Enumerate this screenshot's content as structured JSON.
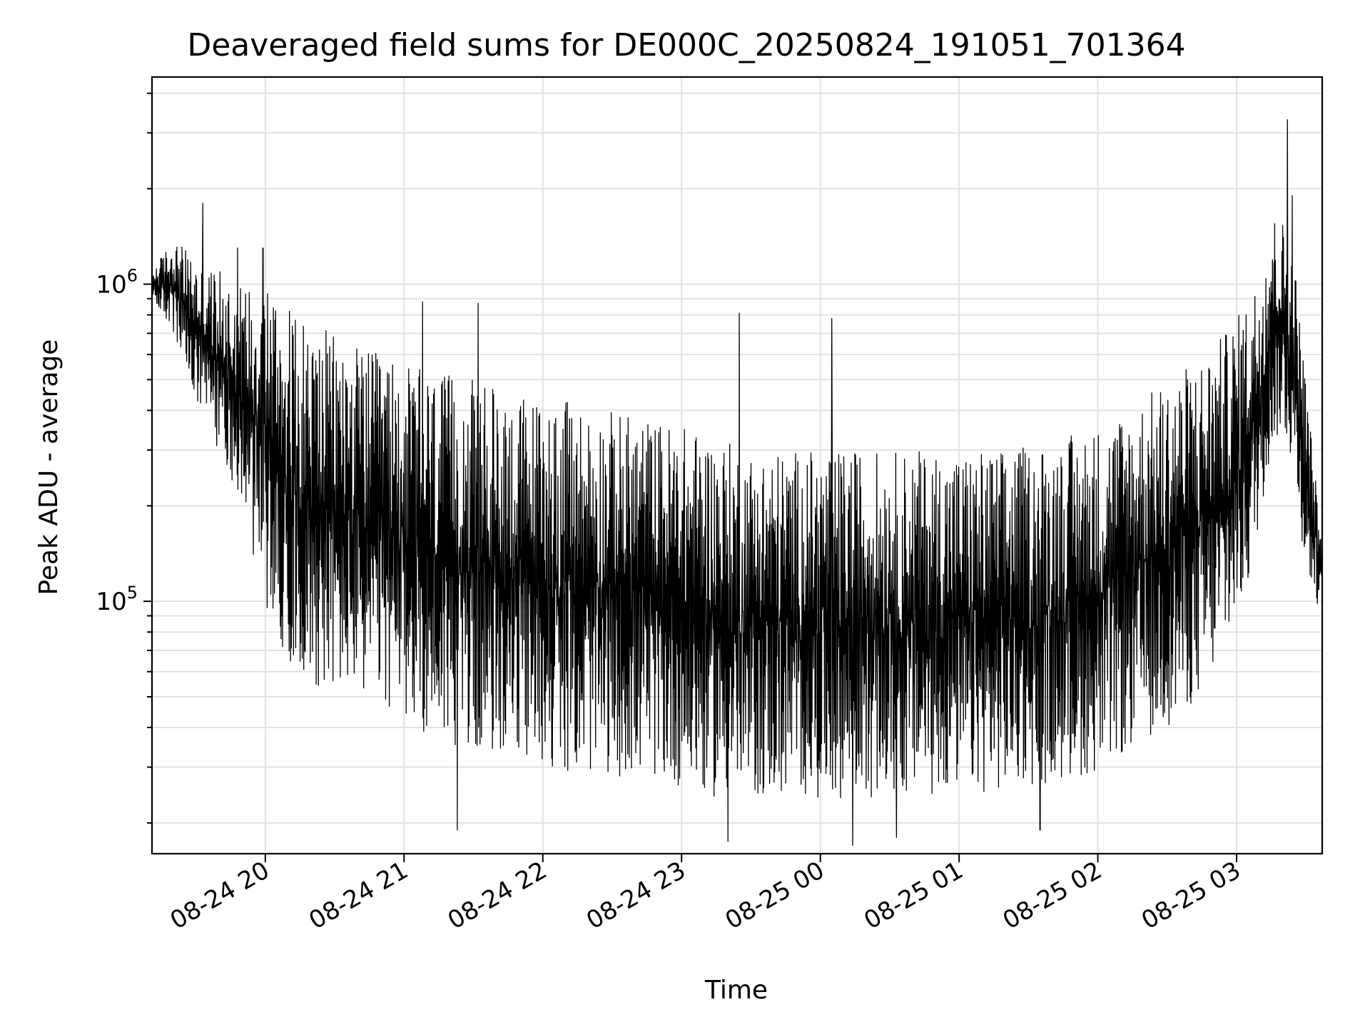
{
  "chart_data": {
    "type": "line",
    "title": "Deaveraged field sums for DE000C_20250824_191051_701364",
    "xlabel": "Time",
    "ylabel": "Peak ADU - average",
    "yscale": "log",
    "grid": true,
    "xlim": [
      "2025-08-24 19:11",
      "2025-08-25 03:37"
    ],
    "ylim": [
      16000,
      4500000
    ],
    "xticks": [
      {
        "label": "08-24 20",
        "t": "2025-08-24 20:00"
      },
      {
        "label": "08-24 21",
        "t": "2025-08-24 21:00"
      },
      {
        "label": "08-24 22",
        "t": "2025-08-24 22:00"
      },
      {
        "label": "08-24 23",
        "t": "2025-08-24 23:00"
      },
      {
        "label": "08-25 00",
        "t": "2025-08-25 00:00"
      },
      {
        "label": "08-25 01",
        "t": "2025-08-25 01:00"
      },
      {
        "label": "08-25 02",
        "t": "2025-08-25 02:00"
      },
      {
        "label": "08-25 03",
        "t": "2025-08-25 03:00"
      }
    ],
    "yticks": [
      {
        "value": 100000,
        "base": "10",
        "exp": "5"
      },
      {
        "value": 1000000,
        "base": "10",
        "exp": "6"
      }
    ],
    "series": [
      {
        "color": "#000000",
        "envelope": {
          "t": [
            "2025-08-24 19:11",
            "2025-08-24 19:20",
            "2025-08-24 19:30",
            "2025-08-24 19:40",
            "2025-08-24 19:50",
            "2025-08-24 20:00",
            "2025-08-24 20:10",
            "2025-08-24 20:20",
            "2025-08-24 20:30",
            "2025-08-24 20:45",
            "2025-08-24 21:00",
            "2025-08-24 21:15",
            "2025-08-24 21:30",
            "2025-08-24 21:45",
            "2025-08-24 22:00",
            "2025-08-24 22:15",
            "2025-08-24 22:30",
            "2025-08-24 22:45",
            "2025-08-24 23:00",
            "2025-08-24 23:15",
            "2025-08-24 23:30",
            "2025-08-24 23:45",
            "2025-08-25 00:00",
            "2025-08-25 00:15",
            "2025-08-25 00:30",
            "2025-08-25 00:45",
            "2025-08-25 01:00",
            "2025-08-25 01:15",
            "2025-08-25 01:30",
            "2025-08-25 01:45",
            "2025-08-25 02:00",
            "2025-08-25 02:15",
            "2025-08-25 02:30",
            "2025-08-25 02:45",
            "2025-08-25 02:55",
            "2025-08-25 03:05",
            "2025-08-25 03:10",
            "2025-08-25 03:15",
            "2025-08-25 03:20",
            "2025-08-25 03:25",
            "2025-08-25 03:30",
            "2025-08-25 03:37"
          ],
          "low": [
            900000,
            700000,
            400000,
            300000,
            200000,
            95000,
            65000,
            55000,
            52000,
            50000,
            42000,
            36000,
            34000,
            33000,
            30000,
            29000,
            28000,
            28000,
            26000,
            24000,
            24000,
            24000,
            24000,
            24000,
            24000,
            24000,
            25000,
            25000,
            26000,
            27000,
            29000,
            34000,
            40000,
            50000,
            70000,
            110000,
            180000,
            300000,
            350000,
            250000,
            120000,
            90000
          ],
          "high": [
            1100000,
            1400000,
            1200000,
            1100000,
            1000000,
            1100000,
            850000,
            750000,
            700000,
            620000,
            560000,
            520000,
            500000,
            460000,
            440000,
            420000,
            400000,
            380000,
            360000,
            330000,
            300000,
            300000,
            300000,
            300000,
            300000,
            300000,
            300000,
            300000,
            310000,
            330000,
            360000,
            420000,
            500000,
            600000,
            700000,
            900000,
            1100000,
            1700000,
            1600000,
            1200000,
            500000,
            150000
          ]
        },
        "peaks": [
          {
            "t": "2025-08-24 19:33",
            "y": 1800000
          },
          {
            "t": "2025-08-24 19:48",
            "y": 1300000
          },
          {
            "t": "2025-08-24 19:59",
            "y": 1300000
          },
          {
            "t": "2025-08-24 21:08",
            "y": 880000
          },
          {
            "t": "2025-08-24 21:32",
            "y": 870000
          },
          {
            "t": "2025-08-24 23:25",
            "y": 810000
          },
          {
            "t": "2025-08-25 00:05",
            "y": 780000
          },
          {
            "t": "2025-08-25 03:22",
            "y": 3300000
          },
          {
            "t": "2025-08-25 03:24",
            "y": 1900000
          }
        ],
        "dips": [
          {
            "t": "2025-08-24 21:23",
            "y": 19000
          },
          {
            "t": "2025-08-24 23:20",
            "y": 17500
          },
          {
            "t": "2025-08-25 00:14",
            "y": 17000
          },
          {
            "t": "2025-08-25 00:33",
            "y": 18000
          },
          {
            "t": "2025-08-25 01:35",
            "y": 19000
          }
        ]
      }
    ]
  }
}
